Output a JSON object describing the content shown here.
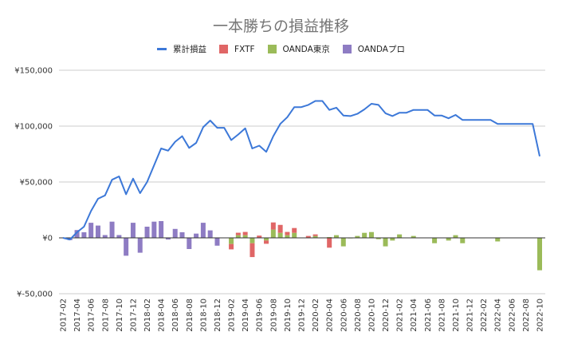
{
  "chart_data": {
    "type": "bar+line",
    "title": "一本勝ちの損益推移",
    "legend_position": "top",
    "grid": true,
    "ylim": [
      -50000,
      150000
    ],
    "yticks": [
      "¥-50,000",
      "¥0",
      "¥50,000",
      "¥100,000",
      "¥150,000"
    ],
    "ytick_values": [
      -50000,
      0,
      50000,
      100000,
      150000
    ],
    "x": [
      "2017-02",
      "2017-03",
      "2017-04",
      "2017-05",
      "2017-06",
      "2017-07",
      "2017-08",
      "2017-09",
      "2017-10",
      "2017-11",
      "2017-12",
      "2018-01",
      "2018-02",
      "2018-03",
      "2018-04",
      "2018-05",
      "2018-06",
      "2018-07",
      "2018-08",
      "2018-09",
      "2018-10",
      "2018-11",
      "2018-12",
      "2019-01",
      "2019-02",
      "2019-03",
      "2019-04",
      "2019-05",
      "2019-06",
      "2019-07",
      "2019-08",
      "2019-09",
      "2019-10",
      "2019-11",
      "2019-12",
      "2020-01",
      "2020-02",
      "2020-03",
      "2020-04",
      "2020-05",
      "2020-06",
      "2020-07",
      "2020-08",
      "2020-09",
      "2020-10",
      "2020-11",
      "2020-12",
      "2021-01",
      "2021-02",
      "2021-03",
      "2021-04",
      "2021-05",
      "2021-06",
      "2021-07",
      "2021-08",
      "2021-09",
      "2021-10",
      "2021-11",
      "2021-12",
      "2022-01",
      "2022-02",
      "2022-03",
      "2022-04",
      "2022-05",
      "2022-06",
      "2022-07",
      "2022-08",
      "2022-09",
      "2022-10"
    ],
    "series": [
      {
        "name": "累計損益",
        "type": "line",
        "color": "#3c78d8",
        "values": [
          0,
          -1500,
          5000,
          10000,
          24000,
          35000,
          38000,
          52000,
          55000,
          39000,
          53000,
          40000,
          50000,
          65000,
          80000,
          78000,
          86000,
          91000,
          80500,
          85000,
          99000,
          105000,
          98500,
          98500,
          87500,
          92500,
          98000,
          80000,
          82500,
          77000,
          91000,
          102000,
          108000,
          117000,
          117000,
          119000,
          122500,
          122500,
          114500,
          116500,
          109500,
          109000,
          111000,
          115000,
          120000,
          119000,
          111500,
          109000,
          112000,
          112000,
          114500,
          114500,
          114500,
          109500,
          109500,
          107000,
          110000,
          105500,
          105500,
          105500,
          105500,
          105500,
          102000,
          102000,
          102000,
          102000,
          102000,
          102000,
          73000
        ]
      },
      {
        "name": "OANDA東京",
        "type": "bar",
        "color": "#9bbb59",
        "values": [
          0,
          0,
          0,
          0,
          0,
          0,
          0,
          0,
          0,
          0,
          0,
          0,
          0,
          0,
          0,
          0,
          0,
          0,
          0,
          0,
          0,
          0,
          0,
          0,
          -5500,
          2400,
          2400,
          -4800,
          0,
          -2400,
          7400,
          4500,
          2400,
          4500,
          0,
          0,
          1700,
          0,
          700,
          2400,
          -7600,
          -500,
          1700,
          4500,
          5200,
          -1200,
          -7600,
          -2400,
          3100,
          0,
          1700,
          0,
          0,
          -4800,
          0,
          -2400,
          2400,
          -4800,
          0,
          0,
          0,
          0,
          -3200,
          0,
          0,
          0,
          0,
          0,
          -29000
        ]
      },
      {
        "name": "FXTF",
        "type": "bar",
        "color": "#e06666",
        "values": [
          0,
          0,
          0,
          0,
          0,
          0,
          0,
          0,
          0,
          0,
          0,
          0,
          0,
          0,
          0,
          0,
          0,
          0,
          0,
          0,
          0,
          0,
          0,
          0,
          -4800,
          2200,
          2900,
          -12400,
          2000,
          -2900,
          6400,
          7100,
          2900,
          4300,
          0,
          1700,
          1400,
          0,
          -8800,
          0,
          0,
          0,
          0,
          0,
          0,
          0,
          0,
          0,
          0,
          0,
          0,
          0,
          0,
          0,
          0,
          0,
          0,
          0,
          0,
          0,
          0,
          0,
          0,
          0,
          0,
          0,
          0,
          0,
          0
        ]
      },
      {
        "name": "OANDAプロ",
        "type": "bar",
        "color": "#8e7cc3",
        "values": [
          0,
          -2000,
          7000,
          5000,
          13500,
          11000,
          2500,
          14500,
          2500,
          -16000,
          13500,
          -13300,
          10000,
          14500,
          15000,
          -1500,
          8000,
          5000,
          -10000,
          3800,
          13500,
          6700,
          -7000,
          0,
          0,
          0,
          0,
          0,
          0,
          0,
          0,
          0,
          0,
          0,
          0,
          0,
          0,
          0,
          0,
          0,
          0,
          0,
          0,
          0,
          0,
          0,
          0,
          0,
          0,
          0,
          0,
          0,
          0,
          0,
          0,
          0,
          0,
          0,
          0,
          0,
          0,
          0,
          0,
          0,
          0,
          0,
          0,
          0,
          0
        ]
      }
    ]
  }
}
